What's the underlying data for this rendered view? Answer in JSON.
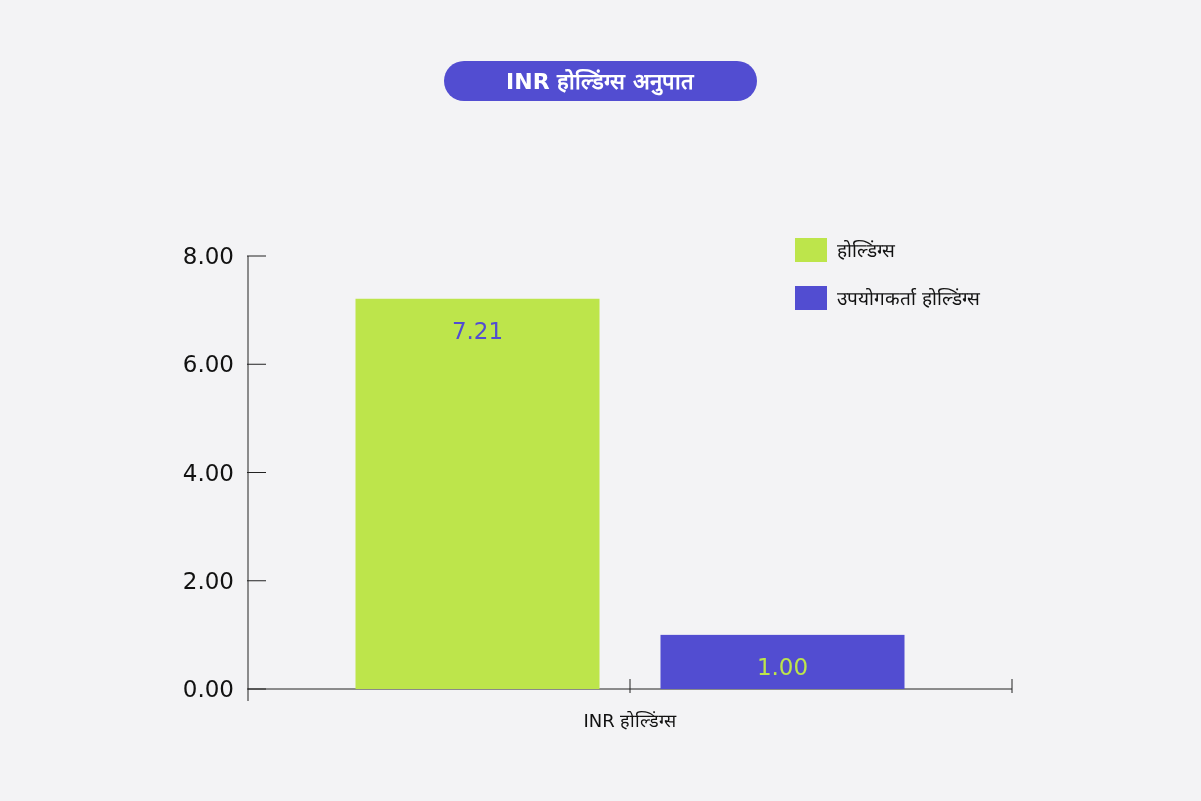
{
  "chart_data": {
    "type": "bar",
    "title": "INR होल्डिंग्स अनुपात",
    "categories": [
      "INR होल्डिंग्स"
    ],
    "series": [
      {
        "name": "होल्डिंग्स",
        "color": "#bde54b",
        "values": [
          7.21
        ],
        "value_labels": [
          "7.21"
        ]
      },
      {
        "name": "उपयोगकर्ता होल्डिंग्स",
        "color": "#524dd1",
        "values": [
          1.0
        ],
        "value_labels": [
          "1.00"
        ]
      }
    ],
    "ylim": [
      0,
      8
    ],
    "yticks": [
      {
        "value": 0,
        "label": "0.00"
      },
      {
        "value": 2,
        "label": "2.00"
      },
      {
        "value": 4,
        "label": "4.00"
      },
      {
        "value": 6,
        "label": "6.00"
      },
      {
        "value": 8,
        "label": "8.00"
      }
    ],
    "legend": "top right"
  }
}
